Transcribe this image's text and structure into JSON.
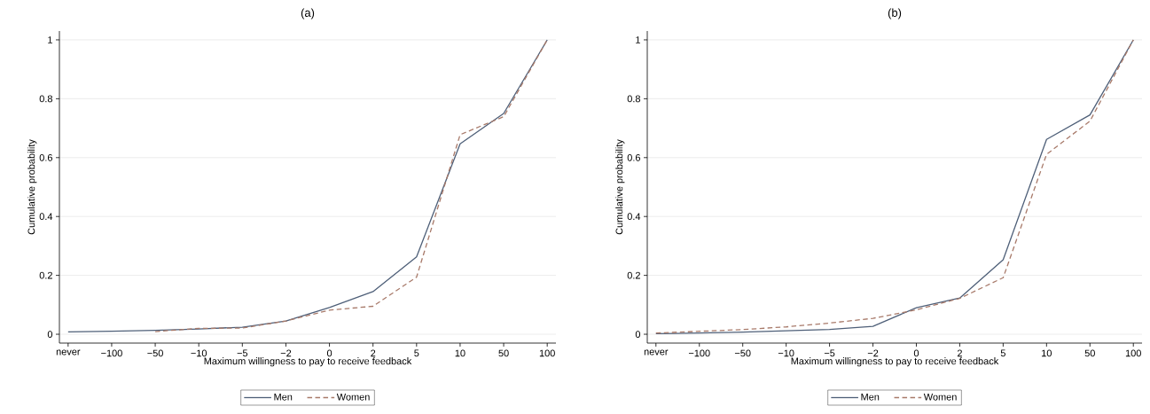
{
  "chart_data": [
    {
      "type": "line",
      "title": "(a)",
      "xlabel": "Maximum willingness to pay to receive feedback",
      "ylabel": "Cumulative probability",
      "categories": [
        "never",
        "−100",
        "−50",
        "−10",
        "−5",
        "−2",
        "0",
        "2",
        "5",
        "10",
        "50",
        "100"
      ],
      "series": [
        {
          "name": "Men",
          "color": "#4e5f78",
          "line_style": "solid",
          "values": [
            0.008,
            0.01,
            0.013,
            0.018,
            0.024,
            0.045,
            0.091,
            0.145,
            0.263,
            0.647,
            0.75,
            1.0
          ]
        },
        {
          "name": "Women",
          "color": "#a87a6a",
          "line_style": "dashed",
          "values": [
            null,
            null,
            0.009,
            0.02,
            0.021,
            0.045,
            0.082,
            0.095,
            0.194,
            0.678,
            0.739,
            1.0
          ]
        }
      ],
      "ylim": [
        -0.03,
        1.03
      ],
      "yticks": [
        0,
        0.2,
        0.4,
        0.6,
        0.8,
        1
      ],
      "grid": "y",
      "legend": "bottom"
    },
    {
      "type": "line",
      "title": "(b)",
      "xlabel": "Maximum willingness to pay to receive feedback",
      "ylabel": "Cumulative probability",
      "categories": [
        "never",
        "−100",
        "−50",
        "−10",
        "−5",
        "−2",
        "0",
        "2",
        "5",
        "10",
        "50",
        "100"
      ],
      "series": [
        {
          "name": "Men",
          "color": "#4e5f78",
          "line_style": "solid",
          "values": [
            0.002,
            0.004,
            0.007,
            0.012,
            0.016,
            0.027,
            0.09,
            0.123,
            0.253,
            0.662,
            0.745,
            1.0
          ]
        },
        {
          "name": "Women",
          "color": "#a87a6a",
          "line_style": "dashed",
          "values": [
            0.004,
            0.01,
            0.016,
            0.025,
            0.038,
            0.054,
            0.083,
            0.122,
            0.192,
            0.611,
            0.724,
            1.0
          ]
        }
      ],
      "ylim": [
        -0.03,
        1.03
      ],
      "yticks": [
        0,
        0.2,
        0.4,
        0.6,
        0.8,
        1
      ],
      "grid": "y",
      "legend": "bottom"
    }
  ]
}
